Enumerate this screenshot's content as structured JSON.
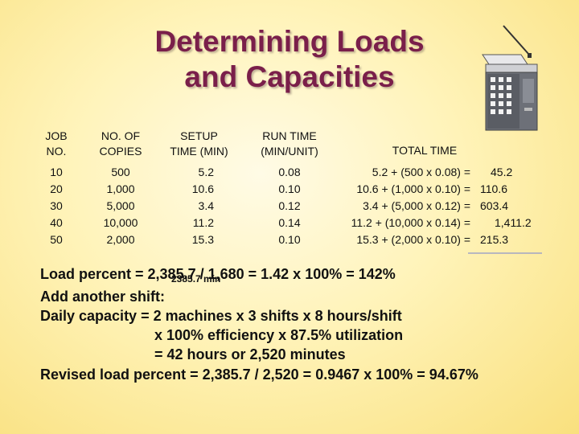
{
  "title": {
    "line1": "Determining Loads",
    "line2": "and Capacities"
  },
  "icons": {
    "copier": "copier-machine-icon"
  },
  "colors": {
    "title": "#7a1f4a",
    "background_center": "#fffbe6",
    "background_edge": "#f9e07e"
  },
  "table": {
    "headers": {
      "job": [
        "JOB",
        "NO."
      ],
      "copies": [
        "NO. OF",
        "COPIES"
      ],
      "setup": [
        "SETUP",
        "TIME (MIN)"
      ],
      "run": [
        "RUN TIME",
        "(MIN/UNIT)"
      ],
      "total": "TOTAL TIME"
    },
    "rows": [
      {
        "job": "10",
        "copies": "500",
        "setup": "5.2",
        "run": "0.08",
        "formula": "5.2 + (500 x 0.08) =",
        "total": "45.2"
      },
      {
        "job": "20",
        "copies": "1,000",
        "setup": "10.6",
        "run": "0.10",
        "formula": "10.6 + (1,000 x 0.10) =",
        "total": "110.6"
      },
      {
        "job": "30",
        "copies": "5,000",
        "setup": "3.4",
        "run": "0.12",
        "formula": "3.4 + (5,000 x 0.12) =",
        "total": "603.4"
      },
      {
        "job": "40",
        "copies": "10,000",
        "setup": "11.2",
        "run": "0.14",
        "formula": "11.2 + (10,000 x 0.14) =",
        "total": "1,411.2"
      },
      {
        "job": "50",
        "copies": "2,000",
        "setup": "15.3",
        "run": "0.10",
        "formula": "15.3 + (2,000 x 0.10) =",
        "total": "215.3"
      }
    ]
  },
  "calc": {
    "load_percent": "Load percent = 2,385.7 / 1,680 = 1.42 x 100% = 142%",
    "total_note": "2385.7 min",
    "add_shift": "Add another shift:",
    "daily_capacity": "Daily capacity  = 2 machines x 3 shifts x 8 hours/shift",
    "efficiency": "x 100% efficiency x 87.5% utilization",
    "result": "= 42 hours or 2,520 minutes",
    "revised": "Revised load percent = 2,385.7 / 2,520 = 0.9467 x 100% = 94.67%"
  }
}
